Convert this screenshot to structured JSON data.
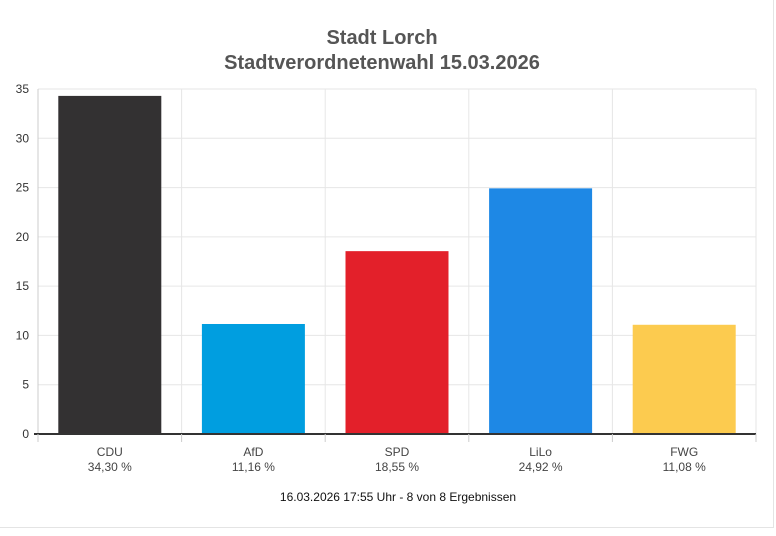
{
  "chart_data": {
    "type": "bar",
    "title": "Stadt Lorch",
    "subtitle": "Stadtverordnetenwahl 15.03.2026",
    "categories": [
      "CDU",
      "AfD",
      "SPD",
      "LiLo",
      "FWG"
    ],
    "values": [
      34.3,
      11.16,
      18.55,
      24.92,
      11.08
    ],
    "value_labels": [
      "34,30 %",
      "11,16 %",
      "18,55 %",
      "24,92 %",
      "11,08 %"
    ],
    "colors": [
      "#333132",
      "#009ee0",
      "#e3202a",
      "#1e88e5",
      "#fccb4f"
    ],
    "ylim": [
      0,
      35
    ],
    "yticks": [
      0,
      5,
      10,
      15,
      20,
      25,
      30,
      35
    ],
    "xlabel": "",
    "ylabel": "",
    "grid": true,
    "legend": "none",
    "footnote": "16.03.2026 17:55 Uhr - 8 von 8 Ergebnissen"
  }
}
